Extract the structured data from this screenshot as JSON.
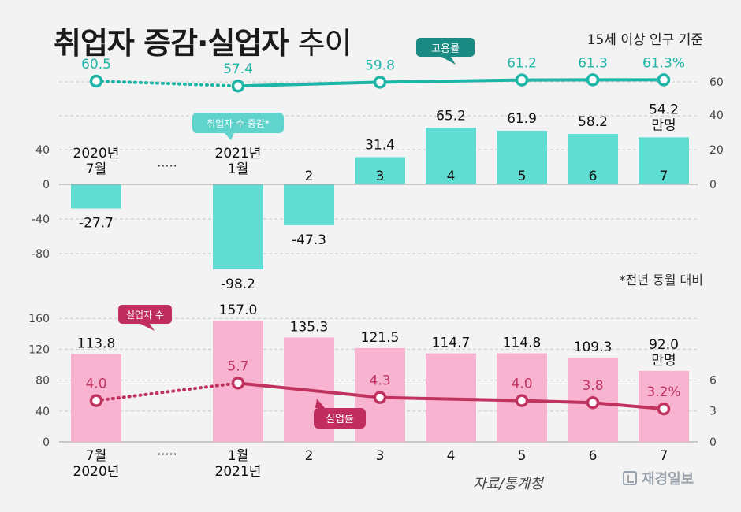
{
  "header": {
    "title_bold": "취업자 증감·실업자",
    "title_light": "추이",
    "basis": "15세 이상 인구 기준",
    "note": "*전년 동월 대비",
    "source": "자료/통계청",
    "logo_text": "재경일보"
  },
  "tags": {
    "employment_rate": "고용률",
    "employed_change": "취업자 수 증감*",
    "unemployed": "실업자 수",
    "unemployment_rate": "실업률"
  },
  "colors": {
    "teal_bar": "#5fddd2",
    "teal_line": "#1db5a6",
    "teal_tag": "#1a8a82",
    "teal_small_tag": "#5fd3cc",
    "pink_bar": "#f7b3cf",
    "pink_line": "#c0335f",
    "pink_tag": "#c02d5e",
    "grid": "#c9c9c9"
  },
  "chart_data": [
    {
      "type": "line",
      "id": "employment_rate",
      "series": [
        {
          "name": "고용률",
          "values": [
            60.5,
            57.4,
            59.8,
            61.2,
            61.3,
            61.3
          ],
          "labels": [
            "60.5",
            "57.4",
            "59.8",
            "61.2",
            "61.3",
            "61.3%"
          ],
          "positions": [
            "2020-07",
            "2021-01",
            "2021-03",
            "2021-05",
            "2021-06",
            "2021-07"
          ],
          "dotted_segment": [
            0,
            1
          ]
        }
      ],
      "y_ticks": [
        "60"
      ],
      "ylim": [
        53,
        63
      ]
    },
    {
      "type": "bar",
      "id": "employed_change",
      "categories": [
        "2020년\n7월",
        "2021년\n1월",
        "2",
        "3",
        "4",
        "5",
        "6",
        "7"
      ],
      "values": [
        -27.7,
        -98.2,
        -47.3,
        31.4,
        65.2,
        61.9,
        58.2,
        54.2
      ],
      "value_labels": [
        "-27.7",
        "-98.2",
        "-47.3",
        "31.4",
        "65.2",
        "61.9",
        "58.2",
        "54.2\n만명"
      ],
      "left_ticks": [
        "40",
        "0",
        "-40",
        "-80"
      ],
      "right_ticks": [
        "40",
        "20",
        "0"
      ],
      "ylim": [
        -110,
        80
      ],
      "gap_marker": "·····"
    },
    {
      "type": "bar",
      "id": "unemployed",
      "categories": [
        "7월\n2020년",
        "1월\n2021년",
        "2",
        "3",
        "4",
        "5",
        "6",
        "7"
      ],
      "values": [
        113.8,
        157.0,
        135.3,
        121.5,
        114.7,
        114.8,
        109.3,
        92.0
      ],
      "value_labels": [
        "113.8",
        "157.0",
        "135.3",
        "121.5",
        "114.7",
        "114.8",
        "109.3",
        "92.0\n만명"
      ],
      "left_ticks": [
        "160",
        "120",
        "80",
        "40",
        "0"
      ],
      "ylim": [
        0,
        160
      ],
      "gap_marker": "·····"
    },
    {
      "type": "line",
      "id": "unemployment_rate",
      "series": [
        {
          "name": "실업률",
          "values": [
            4.0,
            5.7,
            4.3,
            4.0,
            3.8,
            3.2
          ],
          "labels": [
            "4.0",
            "5.7",
            "4.3",
            "4.0",
            "3.8",
            "3.2%"
          ],
          "positions": [
            "2020-07",
            "2021-01",
            "2021-03",
            "2021-05",
            "2021-06",
            "2021-07"
          ],
          "dotted_segment": [
            0,
            1
          ]
        }
      ],
      "right_ticks": [
        "6",
        "3",
        "0"
      ],
      "ylim": [
        0,
        8
      ]
    }
  ]
}
